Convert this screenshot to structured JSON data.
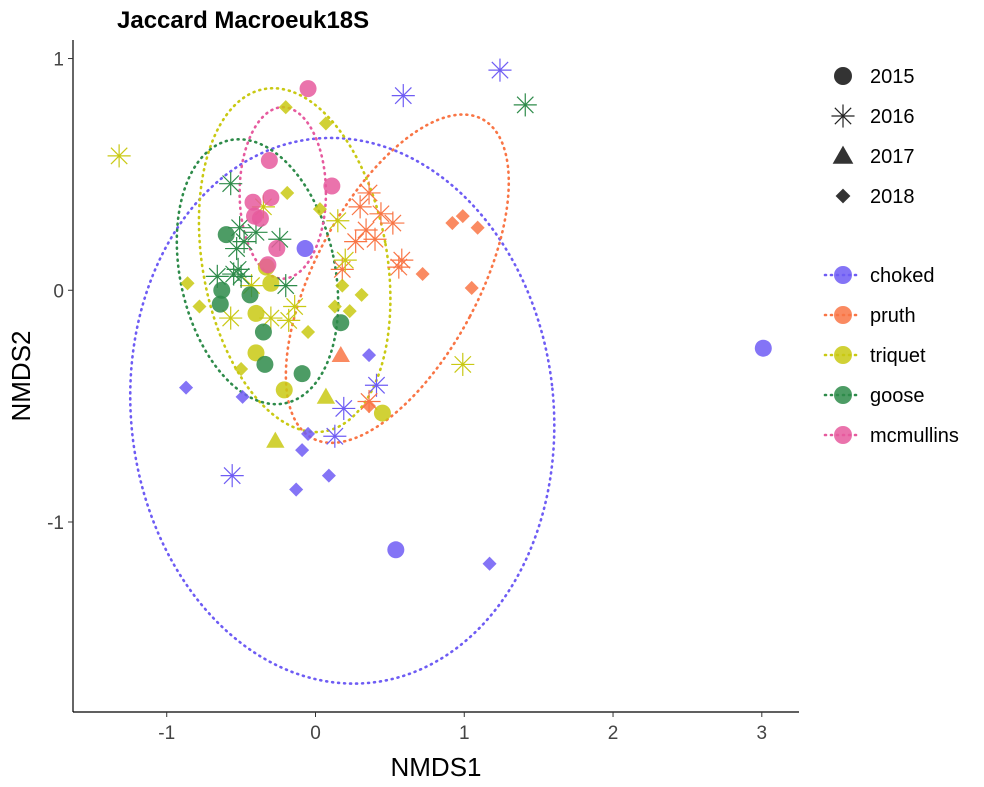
{
  "chart_data": {
    "type": "scatter",
    "title": "Jaccard Macroeuk18S",
    "xlabel": "NMDS1",
    "ylabel": "NMDS2",
    "xlim": [
      -1.63,
      3.25
    ],
    "ylim": [
      -1.82,
      1.08
    ],
    "x_ticks": [
      -1,
      0,
      1,
      2,
      3
    ],
    "x_tick_labels": [
      "-1",
      "0",
      "1",
      "2",
      "3"
    ],
    "y_ticks": [
      -1,
      0,
      1
    ],
    "y_tick_labels": [
      "-1",
      "0",
      "1"
    ],
    "grid": false,
    "legend_position": "right",
    "shape_legend": [
      {
        "label": "2015",
        "shape": "circle"
      },
      {
        "label": "2016",
        "shape": "asterisk"
      },
      {
        "label": "2017",
        "shape": "triangle"
      },
      {
        "label": "2018",
        "shape": "diamond"
      }
    ],
    "series": [
      {
        "name": "choked",
        "color": "#6e5cf4",
        "ellipse": {
          "cx": 0.18,
          "cy": -0.52,
          "rx": 1.42,
          "ry": 1.18,
          "angle": -6
        },
        "points": [
          {
            "x": -0.07,
            "y": 0.18,
            "year": "2015"
          },
          {
            "x": 3.01,
            "y": -0.25,
            "year": "2015"
          },
          {
            "x": 0.54,
            "y": -1.12,
            "year": "2015"
          },
          {
            "x": 1.24,
            "y": 0.95,
            "year": "2016"
          },
          {
            "x": 0.59,
            "y": 0.84,
            "year": "2016"
          },
          {
            "x": 0.41,
            "y": -0.41,
            "year": "2016"
          },
          {
            "x": 0.19,
            "y": -0.51,
            "year": "2016"
          },
          {
            "x": 0.13,
            "y": -0.63,
            "year": "2016"
          },
          {
            "x": -0.56,
            "y": -0.8,
            "year": "2016"
          },
          {
            "x": -0.87,
            "y": -0.42,
            "year": "2018"
          },
          {
            "x": -0.49,
            "y": -0.46,
            "year": "2018"
          },
          {
            "x": 0.36,
            "y": -0.28,
            "year": "2018"
          },
          {
            "x": -0.05,
            "y": -0.62,
            "year": "2018"
          },
          {
            "x": -0.09,
            "y": -0.69,
            "year": "2018"
          },
          {
            "x": 0.09,
            "y": -0.8,
            "year": "2018"
          },
          {
            "x": -0.13,
            "y": -0.86,
            "year": "2018"
          },
          {
            "x": 1.17,
            "y": -1.18,
            "year": "2018"
          }
        ]
      },
      {
        "name": "pruth",
        "color": "#f97545",
        "ellipse": {
          "cx": 0.55,
          "cy": 0.05,
          "rx": 0.55,
          "ry": 0.78,
          "angle": 28
        },
        "points": [
          {
            "x": 0.36,
            "y": 0.42,
            "year": "2016"
          },
          {
            "x": 0.3,
            "y": 0.36,
            "year": "2016"
          },
          {
            "x": 0.44,
            "y": 0.33,
            "year": "2016"
          },
          {
            "x": 0.52,
            "y": 0.29,
            "year": "2016"
          },
          {
            "x": 0.34,
            "y": 0.26,
            "year": "2016"
          },
          {
            "x": 0.4,
            "y": 0.22,
            "year": "2016"
          },
          {
            "x": 0.27,
            "y": 0.21,
            "year": "2016"
          },
          {
            "x": 0.58,
            "y": 0.13,
            "year": "2016"
          },
          {
            "x": 0.56,
            "y": 0.1,
            "year": "2016"
          },
          {
            "x": 0.18,
            "y": 0.09,
            "year": "2016"
          },
          {
            "x": 0.36,
            "y": -0.48,
            "year": "2016"
          },
          {
            "x": 0.17,
            "y": -0.28,
            "year": "2017"
          },
          {
            "x": 0.92,
            "y": 0.29,
            "year": "2018"
          },
          {
            "x": 0.99,
            "y": 0.32,
            "year": "2018"
          },
          {
            "x": 1.09,
            "y": 0.27,
            "year": "2018"
          },
          {
            "x": 0.72,
            "y": 0.07,
            "year": "2018"
          },
          {
            "x": 1.05,
            "y": 0.01,
            "year": "2018"
          },
          {
            "x": 0.36,
            "y": -0.5,
            "year": "2018"
          }
        ]
      },
      {
        "name": "triquet",
        "color": "#c9c913",
        "ellipse": {
          "cx": -0.14,
          "cy": 0.13,
          "rx": 0.62,
          "ry": 0.75,
          "angle": -10
        },
        "points": [
          {
            "x": -0.33,
            "y": 0.1,
            "year": "2015"
          },
          {
            "x": -0.3,
            "y": 0.03,
            "year": "2015"
          },
          {
            "x": -0.4,
            "y": -0.1,
            "year": "2015"
          },
          {
            "x": -0.4,
            "y": -0.27,
            "year": "2015"
          },
          {
            "x": -0.21,
            "y": -0.43,
            "year": "2015"
          },
          {
            "x": 0.45,
            "y": -0.53,
            "year": "2015"
          },
          {
            "x": -1.32,
            "y": 0.58,
            "year": "2016"
          },
          {
            "x": -0.35,
            "y": 0.36,
            "year": "2016"
          },
          {
            "x": 0.15,
            "y": 0.3,
            "year": "2016"
          },
          {
            "x": 0.2,
            "y": 0.13,
            "year": "2016"
          },
          {
            "x": -0.57,
            "y": -0.12,
            "year": "2016"
          },
          {
            "x": -0.3,
            "y": -0.12,
            "year": "2016"
          },
          {
            "x": -0.18,
            "y": -0.13,
            "year": "2016"
          },
          {
            "x": -0.14,
            "y": -0.07,
            "year": "2016"
          },
          {
            "x": -0.43,
            "y": 0.02,
            "year": "2016"
          },
          {
            "x": 0.99,
            "y": -0.32,
            "year": "2016"
          },
          {
            "x": -0.27,
            "y": -0.65,
            "year": "2017"
          },
          {
            "x": 0.07,
            "y": -0.46,
            "year": "2017"
          },
          {
            "x": -0.2,
            "y": 0.79,
            "year": "2018"
          },
          {
            "x": 0.07,
            "y": 0.72,
            "year": "2018"
          },
          {
            "x": -0.19,
            "y": 0.42,
            "year": "2018"
          },
          {
            "x": 0.03,
            "y": 0.35,
            "year": "2018"
          },
          {
            "x": -0.86,
            "y": 0.03,
            "year": "2018"
          },
          {
            "x": 0.18,
            "y": 0.02,
            "year": "2018"
          },
          {
            "x": -0.78,
            "y": -0.07,
            "year": "2018"
          },
          {
            "x": 0.31,
            "y": -0.02,
            "year": "2018"
          },
          {
            "x": 0.13,
            "y": -0.07,
            "year": "2018"
          },
          {
            "x": 0.23,
            "y": -0.09,
            "year": "2018"
          },
          {
            "x": -0.05,
            "y": -0.18,
            "year": "2018"
          },
          {
            "x": -0.5,
            "y": -0.34,
            "year": "2018"
          }
        ]
      },
      {
        "name": "goose",
        "color": "#2e8b4a",
        "ellipse": {
          "cx": -0.39,
          "cy": 0.08,
          "rx": 0.52,
          "ry": 0.58,
          "angle": -12
        },
        "points": [
          {
            "x": -0.6,
            "y": 0.24,
            "year": "2015"
          },
          {
            "x": -0.63,
            "y": 0.0,
            "year": "2015"
          },
          {
            "x": -0.64,
            "y": -0.06,
            "year": "2015"
          },
          {
            "x": -0.44,
            "y": -0.02,
            "year": "2015"
          },
          {
            "x": -0.35,
            "y": -0.18,
            "year": "2015"
          },
          {
            "x": -0.34,
            "y": -0.32,
            "year": "2015"
          },
          {
            "x": -0.09,
            "y": -0.36,
            "year": "2015"
          },
          {
            "x": 0.17,
            "y": -0.14,
            "year": "2015"
          },
          {
            "x": -0.57,
            "y": 0.46,
            "year": "2016"
          },
          {
            "x": -0.51,
            "y": 0.27,
            "year": "2016"
          },
          {
            "x": -0.4,
            "y": 0.25,
            "year": "2016"
          },
          {
            "x": -0.48,
            "y": 0.21,
            "year": "2016"
          },
          {
            "x": -0.24,
            "y": 0.22,
            "year": "2016"
          },
          {
            "x": -0.53,
            "y": 0.18,
            "year": "2016"
          },
          {
            "x": -0.52,
            "y": 0.09,
            "year": "2016"
          },
          {
            "x": -0.55,
            "y": 0.07,
            "year": "2016"
          },
          {
            "x": -0.66,
            "y": 0.06,
            "year": "2016"
          },
          {
            "x": -0.5,
            "y": 0.06,
            "year": "2016"
          },
          {
            "x": -0.2,
            "y": 0.02,
            "year": "2016"
          },
          {
            "x": 1.41,
            "y": 0.8,
            "year": "2016"
          }
        ]
      },
      {
        "name": "mcmullins",
        "color": "#e65a9e",
        "ellipse": {
          "cx": -0.22,
          "cy": 0.42,
          "rx": 0.29,
          "ry": 0.37,
          "angle": 0
        },
        "points": [
          {
            "x": -0.05,
            "y": 0.87,
            "year": "2015"
          },
          {
            "x": -0.31,
            "y": 0.56,
            "year": "2015"
          },
          {
            "x": 0.11,
            "y": 0.45,
            "year": "2015"
          },
          {
            "x": -0.3,
            "y": 0.4,
            "year": "2015"
          },
          {
            "x": -0.42,
            "y": 0.38,
            "year": "2015"
          },
          {
            "x": -0.41,
            "y": 0.32,
            "year": "2015"
          },
          {
            "x": -0.37,
            "y": 0.31,
            "year": "2015"
          },
          {
            "x": -0.26,
            "y": 0.18,
            "year": "2015"
          },
          {
            "x": -0.32,
            "y": 0.11,
            "year": "2015"
          }
        ]
      }
    ]
  }
}
